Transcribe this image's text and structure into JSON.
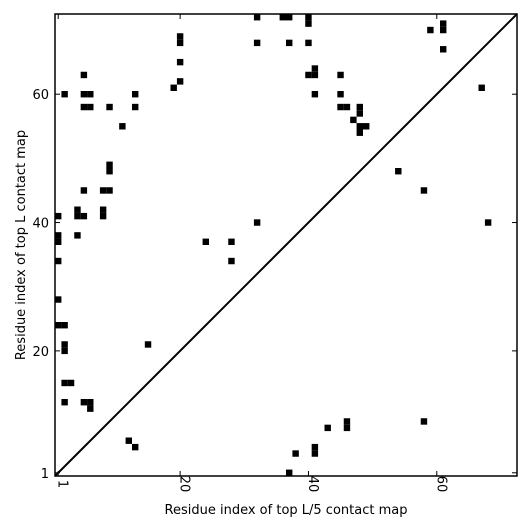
{
  "chart_data": {
    "type": "scatter",
    "title": "",
    "xlabel": "Residue index of top L/5 contact map",
    "ylabel": "Residue index of top L contact map",
    "xlim": [
      0.5,
      72.5
    ],
    "ylim": [
      0.5,
      72.5
    ],
    "xticks": [
      1,
      20,
      40,
      60
    ],
    "yticks": [
      1,
      20,
      40,
      60
    ],
    "grid": false,
    "legend": "none",
    "marker": "square",
    "marker_color": "#000000",
    "diagonal_line": true,
    "points_upper_top_L": [
      [
        32,
        72
      ],
      [
        36,
        72
      ],
      [
        37,
        72
      ],
      [
        40,
        72
      ],
      [
        40,
        71
      ],
      [
        61,
        71
      ],
      [
        61,
        70
      ],
      [
        59,
        70
      ],
      [
        20,
        69
      ],
      [
        20,
        68
      ],
      [
        32,
        68
      ],
      [
        37,
        68
      ],
      [
        40,
        68
      ],
      [
        61,
        67
      ],
      [
        20,
        65
      ],
      [
        5,
        63
      ],
      [
        40,
        63
      ],
      [
        41,
        64
      ],
      [
        41,
        63
      ],
      [
        45,
        63
      ],
      [
        20,
        62
      ],
      [
        19,
        61
      ],
      [
        67,
        61
      ],
      [
        2,
        60
      ],
      [
        5,
        60
      ],
      [
        6,
        60
      ],
      [
        13,
        60
      ],
      [
        41,
        60
      ],
      [
        45,
        60
      ],
      [
        5,
        58
      ],
      [
        6,
        58
      ],
      [
        9,
        58
      ],
      [
        13,
        58
      ],
      [
        45,
        58
      ],
      [
        46,
        58
      ],
      [
        48,
        58
      ],
      [
        48,
        57
      ],
      [
        47,
        56
      ],
      [
        48,
        55
      ],
      [
        49,
        55
      ],
      [
        48,
        54
      ],
      [
        11,
        55
      ],
      [
        9,
        49
      ],
      [
        9,
        48
      ],
      [
        54,
        48
      ],
      [
        5,
        45
      ],
      [
        8,
        45
      ],
      [
        9,
        45
      ],
      [
        58,
        45
      ],
      [
        4,
        42
      ],
      [
        4,
        41
      ],
      [
        5,
        41
      ],
      [
        8,
        42
      ],
      [
        8,
        41
      ],
      [
        1,
        41
      ],
      [
        32,
        40
      ],
      [
        68,
        40
      ],
      [
        1,
        38
      ],
      [
        1,
        37
      ],
      [
        4,
        38
      ],
      [
        24,
        37
      ],
      [
        28,
        37
      ],
      [
        1,
        34
      ],
      [
        28,
        34
      ],
      [
        1,
        28
      ],
      [
        1,
        24
      ],
      [
        2,
        24
      ],
      [
        2,
        21
      ],
      [
        2,
        20
      ],
      [
        15,
        21
      ],
      [
        2,
        15
      ],
      [
        3,
        15
      ],
      [
        2,
        12
      ],
      [
        5,
        12
      ],
      [
        6,
        12
      ],
      [
        6,
        11
      ]
    ],
    "points_lower_top_L5": [
      [
        43,
        8
      ],
      [
        46,
        9
      ],
      [
        46,
        8
      ],
      [
        58,
        9
      ],
      [
        41,
        5
      ],
      [
        41,
        4
      ],
      [
        38,
        4
      ],
      [
        12,
        6
      ],
      [
        13,
        5
      ],
      [
        37,
        1
      ]
    ]
  }
}
